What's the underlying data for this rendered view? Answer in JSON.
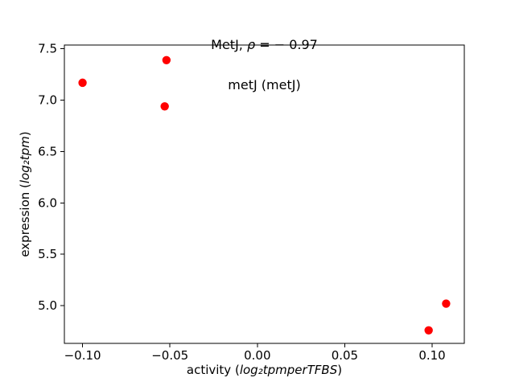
{
  "window": {
    "background": "#ffffff"
  },
  "figure": {
    "title": {
      "prefix": "MetJ, ",
      "rho": "ρ",
      "rest": " = − 0.97"
    },
    "subtitle": "metJ (metJ)",
    "xlabel": {
      "prefix": "activity (",
      "math": "log₂tpmperTFBS",
      "suffix": ")"
    },
    "ylabel": {
      "prefix": "expression (",
      "math": "log₂tpm",
      "suffix": ")"
    }
  },
  "chart_data": {
    "type": "scatter",
    "title": "MetJ, ρ = −0.97",
    "subtitle": "metJ (metJ)",
    "xlabel": "activity (log2 tpm per TFBS)",
    "ylabel": "expression (log2 tpm)",
    "correlation_rho": -0.97,
    "series": [
      {
        "name": "metJ",
        "marker": "circle",
        "color": "#ff0000",
        "marker_radius_px": 5.2,
        "points": [
          {
            "x": -0.1,
            "y": 7.17
          },
          {
            "x": -0.052,
            "y": 7.39
          },
          {
            "x": -0.053,
            "y": 6.94
          },
          {
            "x": 0.108,
            "y": 5.02
          },
          {
            "x": 0.098,
            "y": 4.76
          }
        ]
      }
    ],
    "xlim": [
      -0.1104,
      0.1184
    ],
    "ylim": [
      4.633,
      7.537
    ],
    "xticks": {
      "values": [
        -0.1,
        -0.05,
        0.0,
        0.05,
        0.1
      ],
      "labels": [
        "−0.10",
        "−0.05",
        "0.00",
        "0.05",
        "0.10"
      ]
    },
    "yticks": {
      "values": [
        5.0,
        5.5,
        6.0,
        6.5,
        7.0,
        7.5
      ],
      "labels": [
        "5.0",
        "5.5",
        "6.0",
        "6.5",
        "7.0",
        "7.5"
      ]
    },
    "grid": false,
    "legend": null,
    "axes_color": "#000000",
    "text_color": "#000000",
    "tick_font_px": 15
  }
}
